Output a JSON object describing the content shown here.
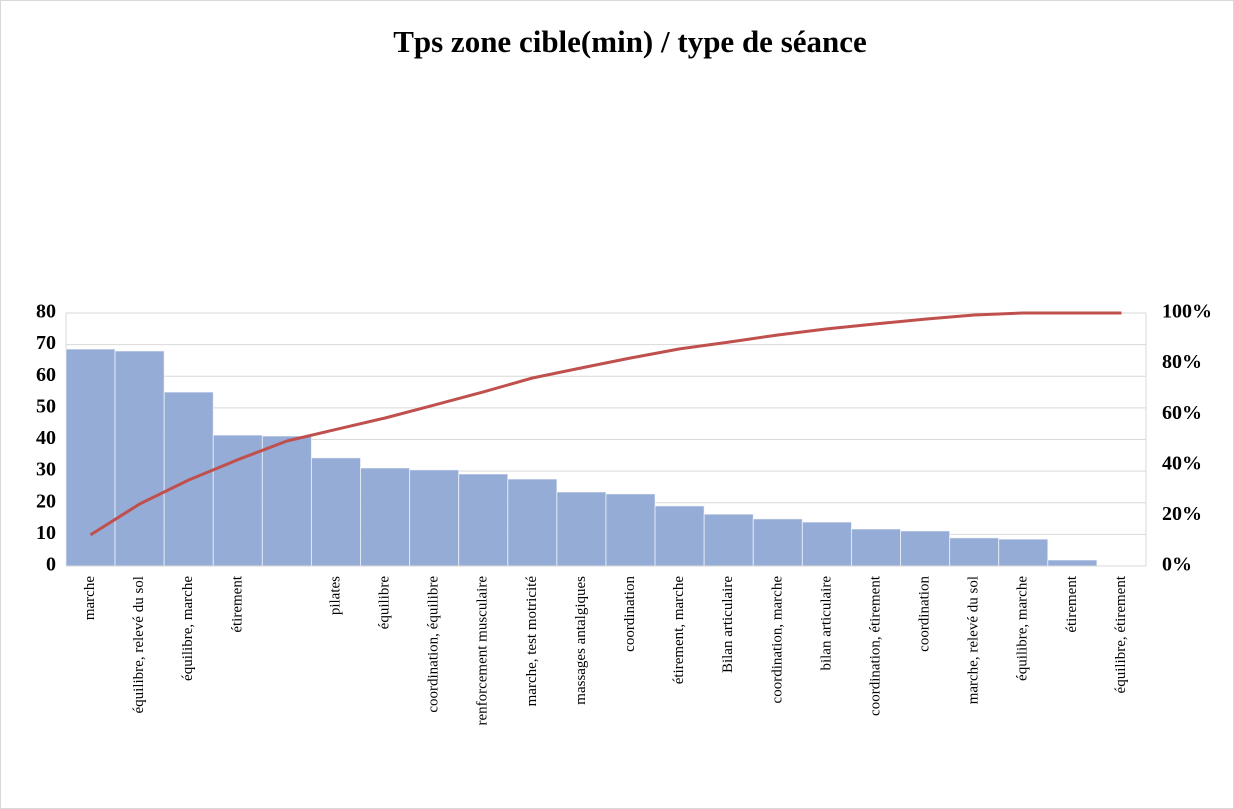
{
  "chart_data": {
    "type": "pareto",
    "title": "Tps zone cible(min) / type de séance",
    "categories": [
      "marche",
      "équilibre, relevé du sol",
      "équilibre, marche",
      "étirement",
      null,
      "pilates",
      "équilibre",
      "coordination, équilibre",
      "renforcement musculaire",
      "marche, test motricité",
      "massages antalgiques",
      "coordination",
      "étirement, marche",
      "Bilan articulaire",
      "coordination, marche",
      "bilan articulaire",
      "coordination, étirement",
      "coordination",
      "marche, relevé du sol",
      "équilibre, marche",
      "étirement",
      "équilibre, étirement"
    ],
    "series": [
      {
        "color": "#95acd6",
        "values": [
          68.6,
          68,
          55,
          41.4,
          41.1,
          34.2,
          31,
          30.4,
          29.1,
          27.5,
          23.4,
          22.8,
          19,
          16.4,
          14.9,
          13.9,
          11.7,
          11.1,
          8.9,
          8.5,
          1.9,
          0
        ]
      },
      {
        "color": "#c0504d",
        "axis": "y2",
        "values": [
          12.3,
          24.5,
          34,
          42,
          49.4,
          54,
          58.5,
          63.6,
          68.8,
          74.3,
          78.3,
          82.2,
          85.8,
          88.5,
          91.3,
          93.7,
          95.7,
          97.6,
          99.2,
          100,
          100,
          100
        ]
      }
    ],
    "ylim": [
      0,
      80
    ],
    "yticks": [
      0,
      10,
      20,
      30,
      40,
      50,
      60,
      70,
      80
    ],
    "y2lim": [
      0,
      100
    ],
    "y2ticks": [
      {
        "value": 0,
        "label": "0%"
      },
      {
        "value": 20,
        "label": "20%"
      },
      {
        "value": 40,
        "label": "40%"
      },
      {
        "value": 60,
        "label": "60%"
      },
      {
        "value": 80,
        "label": "80%"
      },
      {
        "value": 100,
        "label": "100%"
      }
    ],
    "grid": true
  }
}
